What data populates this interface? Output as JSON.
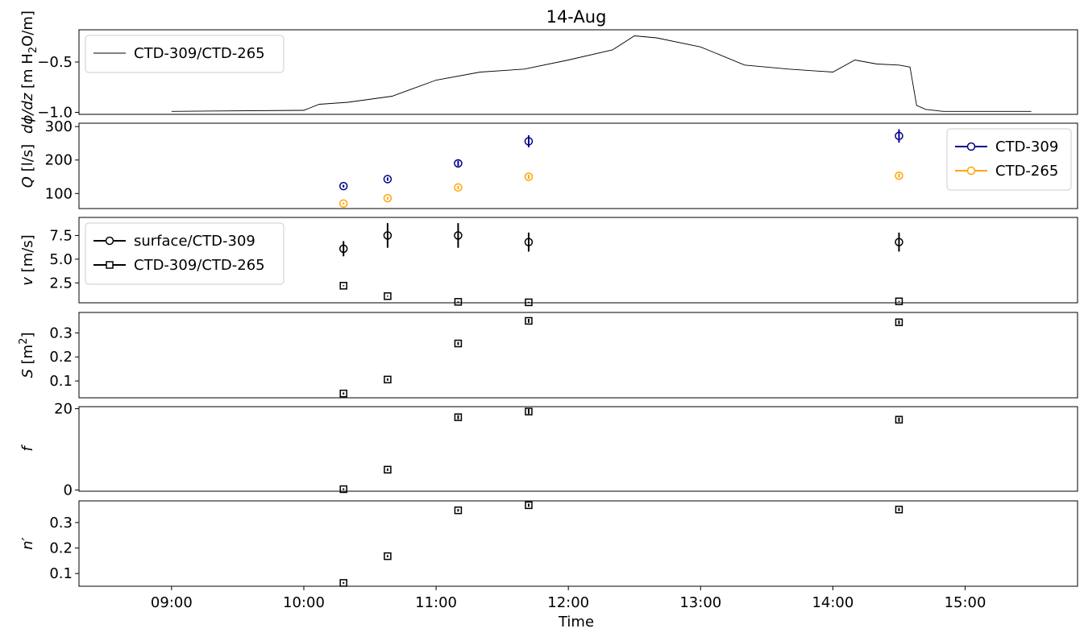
{
  "figure": {
    "title": "14-Aug",
    "xlabel": "Time",
    "x_ticks": [
      "09:00",
      "10:00",
      "11:00",
      "12:00",
      "13:00",
      "14:00",
      "15:00"
    ]
  },
  "colors": {
    "ctd309": "#00008b",
    "ctd265": "#ffa500",
    "black": "#000000"
  },
  "chart_data": [
    {
      "type": "line",
      "ylabel_parts": [
        "dϕ/dz",
        "[m H",
        "2",
        "O/m]"
      ],
      "ylim": [
        -1.02,
        -0.18
      ],
      "y_ticks": [
        -0.5,
        -1.0
      ],
      "y_tick_labels": [
        "−0.5",
        "−1.0"
      ],
      "legend_placement": "top-left",
      "series": [
        {
          "name": "CTD-309/CTD-265",
          "x": [
            "09:00",
            "10:00",
            "10:07",
            "10:20",
            "10:40",
            "11:00",
            "11:20",
            "11:40",
            "12:00",
            "12:20",
            "12:30",
            "12:40",
            "13:00",
            "13:20",
            "13:40",
            "14:00",
            "14:10",
            "14:20",
            "14:30",
            "14:35",
            "14:38",
            "14:42",
            "14:50",
            "15:10",
            "15:30"
          ],
          "y": [
            -0.99,
            -0.98,
            -0.92,
            -0.9,
            -0.84,
            -0.68,
            -0.6,
            -0.57,
            -0.48,
            -0.38,
            -0.24,
            -0.26,
            -0.35,
            -0.53,
            -0.57,
            -0.6,
            -0.48,
            -0.52,
            -0.53,
            -0.55,
            -0.93,
            -0.97,
            -0.99,
            -0.99,
            -0.99
          ]
        }
      ]
    },
    {
      "type": "scatter",
      "ylabel_parts": [
        "Q",
        "[l/s]"
      ],
      "ylim": [
        55,
        310
      ],
      "y_ticks": [
        100,
        200,
        300
      ],
      "y_tick_labels": [
        "100",
        "200",
        "300"
      ],
      "legend_placement": "top-right",
      "series": [
        {
          "name": "CTD-309",
          "x": [
            "10:18",
            "10:38",
            "11:10",
            "11:42",
            "14:30"
          ],
          "y": [
            122,
            143,
            190,
            256,
            272
          ],
          "err": [
            4,
            5,
            8,
            18,
            20
          ]
        },
        {
          "name": "CTD-265",
          "x": [
            "10:18",
            "10:38",
            "11:10",
            "11:42",
            "14:30"
          ],
          "y": [
            70,
            86,
            118,
            150,
            153
          ],
          "err": [
            3,
            4,
            5,
            6,
            6
          ]
        }
      ]
    },
    {
      "type": "scatter",
      "ylabel_parts": [
        "v",
        "[m/s]"
      ],
      "ylim": [
        0.4,
        9.4
      ],
      "y_ticks": [
        2.5,
        5.0,
        7.5
      ],
      "y_tick_labels": [
        "2.5",
        "5.0",
        "7.5"
      ],
      "legend_placement": "top-left",
      "series": [
        {
          "name": "surface/CTD-309",
          "marker": "circle",
          "x": [
            "10:18",
            "10:38",
            "11:10",
            "11:42",
            "14:30"
          ],
          "y": [
            6.1,
            7.5,
            7.5,
            6.8,
            6.8
          ],
          "err": [
            0.8,
            1.3,
            1.3,
            1.0,
            1.0
          ]
        },
        {
          "name": "CTD-309/CTD-265",
          "marker": "square",
          "x": [
            "10:18",
            "10:38",
            "11:10",
            "11:42",
            "14:30"
          ],
          "y": [
            2.2,
            1.1,
            0.5,
            0.45,
            0.55
          ],
          "err": [
            0.05,
            0.05,
            0.05,
            0.05,
            0.05
          ]
        }
      ]
    },
    {
      "type": "scatter",
      "ylabel_parts": [
        "S",
        "[m",
        "2",
        "]"
      ],
      "ylim": [
        0.03,
        0.385
      ],
      "y_ticks": [
        0.1,
        0.2,
        0.3
      ],
      "y_tick_labels": [
        "0.1",
        "0.2",
        "0.3"
      ],
      "series": [
        {
          "marker": "square",
          "x": [
            "10:18",
            "10:38",
            "11:10",
            "11:42",
            "14:30"
          ],
          "y": [
            0.048,
            0.106,
            0.256,
            0.35,
            0.344
          ],
          "err": [
            0.004,
            0.005,
            0.006,
            0.008,
            0.008
          ]
        }
      ]
    },
    {
      "type": "scatter",
      "ylabel_parts": [
        "f"
      ],
      "ylim": [
        -0.3,
        20.5
      ],
      "y_ticks": [
        0,
        20
      ],
      "y_tick_labels": [
        "0",
        "20"
      ],
      "series": [
        {
          "marker": "square",
          "x": [
            "10:18",
            "10:38",
            "11:10",
            "11:42",
            "14:30"
          ],
          "y": [
            0.2,
            5.0,
            17.9,
            19.3,
            17.3
          ],
          "err": [
            0.2,
            0.3,
            0.5,
            0.6,
            0.5
          ]
        }
      ]
    },
    {
      "type": "scatter",
      "ylabel_parts": [
        "n′"
      ],
      "ylim": [
        0.05,
        0.385
      ],
      "y_ticks": [
        0.1,
        0.2,
        0.3
      ],
      "y_tick_labels": [
        "0.1",
        "0.2",
        "0.3"
      ],
      "series": [
        {
          "marker": "square",
          "x": [
            "10:18",
            "10:38",
            "11:10",
            "11:42",
            "14:30"
          ],
          "y": [
            0.063,
            0.168,
            0.348,
            0.368,
            0.351
          ],
          "err": [
            0.003,
            0.004,
            0.005,
            0.006,
            0.006
          ]
        }
      ]
    }
  ]
}
